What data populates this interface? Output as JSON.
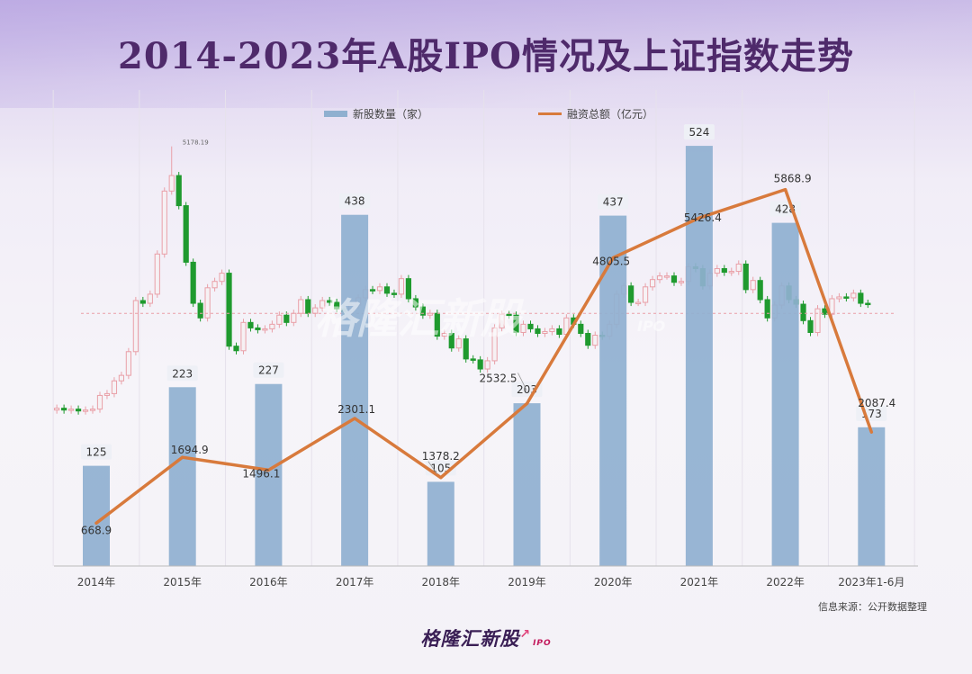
{
  "page": {
    "title": "2014-2023年A股IPO情况及上证指数走势",
    "source": "信息来源：公开数据整理",
    "logo": {
      "text": "格隆汇新股",
      "sub": "IPO"
    },
    "watermark": {
      "text": "格隆汇新股",
      "sub": "IPO"
    }
  },
  "chart_data": {
    "type": "bar",
    "categories": [
      "2014年",
      "2015年",
      "2016年",
      "2017年",
      "2018年",
      "2019年",
      "2020年",
      "2021年",
      "2022年",
      "2023年1-6月"
    ],
    "legend": [
      "新股数量（家）",
      "融资总额（亿元）"
    ],
    "legend_position": "top",
    "grid": false,
    "series": [
      {
        "name": "新股数量（家）",
        "type": "bar",
        "values": [
          125,
          223,
          227,
          438,
          105,
          203,
          437,
          524,
          428,
          173
        ],
        "labels": [
          "125",
          "223",
          "227",
          "438",
          "105",
          "203",
          "437",
          "524",
          "428",
          "173"
        ],
        "ylim": [
          0,
          560
        ],
        "color": "#8fb0d0"
      },
      {
        "name": "融资总额（亿元）",
        "type": "line",
        "values": [
          668.9,
          1694.9,
          1496.1,
          2301.1,
          1378.2,
          2532.5,
          4805.5,
          5426.4,
          5868.9,
          2087.4
        ],
        "labels": [
          "668.9",
          "1694.9",
          "1496.1",
          "2301.1",
          "1378.2",
          "2532.5",
          "4805.5",
          "5426.4",
          "5868.9",
          "2087.4"
        ],
        "ylim": [
          0,
          7000
        ],
        "color": "#d87a3c"
      }
    ],
    "index": {
      "type": "candlestick",
      "max_label": "5178.19",
      "ylim": [
        1800,
        5400
      ],
      "up_color": "#e9a0a8",
      "down_color": "#1f9a2e",
      "reference_line": 3100,
      "candles_per_year": [
        12,
        12,
        12,
        12,
        12,
        12,
        12,
        12,
        12,
        6
      ],
      "close": [
        2060,
        2040,
        2050,
        2030,
        2040,
        2050,
        2200,
        2220,
        2360,
        2420,
        2680,
        3240,
        3210,
        3310,
        3750,
        4440,
        4610,
        4280,
        3660,
        3210,
        3050,
        3380,
        3450,
        3540,
        2740,
        2690,
        3000,
        2940,
        2920,
        2930,
        2980,
        3080,
        3000,
        3100,
        3250,
        3100,
        3160,
        3240,
        3220,
        3150,
        3120,
        3190,
        3270,
        3360,
        3350,
        3390,
        3320,
        3310,
        3480,
        3260,
        3170,
        3080,
        3100,
        2850,
        2880,
        2720,
        2820,
        2600,
        2590,
        2490,
        2580,
        2940,
        3090,
        3080,
        2890,
        2980,
        2930,
        2880,
        2900,
        2930,
        2870,
        3050,
        2980,
        2880,
        2750,
        2860,
        2850,
        2980,
        3310,
        3400,
        3220,
        3220,
        3390,
        3470,
        3510,
        3510,
        3440,
        3450,
        3610,
        3590,
        3400,
        3540,
        3590,
        3550,
        3560,
        3640,
        3360,
        3460,
        3250,
        3050,
        3190,
        3400,
        3250,
        3200,
        3020,
        2890,
        3150,
        3090,
        3260,
        3280,
        3270,
        3320,
        3210,
        3200
      ]
    }
  }
}
